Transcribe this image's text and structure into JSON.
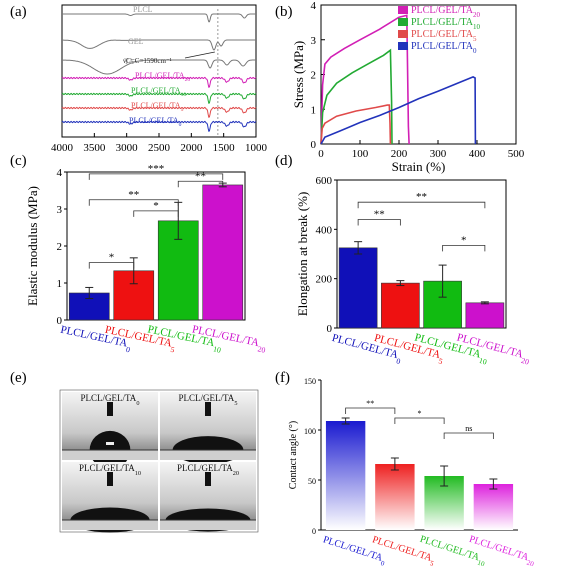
{
  "panels": {
    "a": {
      "label": "(a)",
      "type": "line",
      "curves": [
        {
          "name": "PLCL",
          "color": "#777777",
          "text_color": "#9a9a9a"
        },
        {
          "name": "GEL",
          "color": "#777777",
          "text_color": "#9a9a9a"
        },
        {
          "name": "TA",
          "color": "#777777",
          "text_color": "#9a9a9a"
        },
        {
          "name": "PLCL/GEL/TA20",
          "color": "#d21fb5",
          "text_color": "#d21fb5"
        },
        {
          "name": "PLCL/GEL/TA10",
          "color": "#22aa33",
          "text_color": "#22aa33"
        },
        {
          "name": "PLCL/GEL/TA5",
          "color": "#e04a4a",
          "text_color": "#e04a4a"
        },
        {
          "name": "PLCL/GEL/TA0",
          "color": "#2233bb",
          "text_color": "#2233bb"
        }
      ],
      "annotation": "νC=C=1590cm⁻¹",
      "annotation_x": 1590,
      "xlim": [
        4000,
        1000
      ],
      "xticks": [
        "4000",
        "3500",
        "3000",
        "2500",
        "2000",
        "1500",
        "1000"
      ]
    },
    "b": {
      "label": "(b)",
      "type": "line",
      "xlabel": "Strain (%)",
      "ylabel": "Stress (MPa)",
      "xlim": [
        0,
        500
      ],
      "ylim": [
        0,
        4
      ],
      "xticks": [
        "0",
        "100",
        "200",
        "300",
        "400",
        "500"
      ],
      "yticks": [
        "0",
        "1",
        "2",
        "3",
        "4"
      ],
      "series": [
        {
          "name": "PLCL/GEL/TA20",
          "color": "#d21fb5",
          "points": [
            [
              0,
              0
            ],
            [
              4,
              1.7
            ],
            [
              10,
              2.3
            ],
            [
              25,
              2.5
            ],
            [
              60,
              2.75
            ],
            [
              100,
              3.0
            ],
            [
              150,
              3.3
            ],
            [
              200,
              3.65
            ],
            [
              220,
              3.7
            ],
            [
              224,
              0.5
            ],
            [
              226,
              0
            ]
          ]
        },
        {
          "name": "PLCL/GEL/TA10",
          "color": "#22aa33",
          "points": [
            [
              0,
              0
            ],
            [
              4,
              0.9
            ],
            [
              15,
              1.4
            ],
            [
              40,
              1.75
            ],
            [
              80,
              2.05
            ],
            [
              120,
              2.3
            ],
            [
              160,
              2.55
            ],
            [
              178,
              2.7
            ],
            [
              181,
              1.2
            ],
            [
              182,
              0
            ]
          ]
        },
        {
          "name": "PLCL/GEL/TA5",
          "color": "#e04a4a",
          "points": [
            [
              0,
              0
            ],
            [
              3,
              0.45
            ],
            [
              10,
              0.6
            ],
            [
              40,
              0.8
            ],
            [
              90,
              0.95
            ],
            [
              140,
              1.05
            ],
            [
              170,
              1.12
            ],
            [
              175,
              1.12
            ],
            [
              177,
              0.6
            ],
            [
              178,
              0
            ]
          ]
        },
        {
          "name": "PLCL/GEL/TA0",
          "color": "#2233bb",
          "points": [
            [
              0,
              0
            ],
            [
              10,
              0.2
            ],
            [
              50,
              0.38
            ],
            [
              100,
              0.62
            ],
            [
              150,
              0.82
            ],
            [
              200,
              1.05
            ],
            [
              250,
              1.3
            ],
            [
              300,
              1.52
            ],
            [
              350,
              1.75
            ],
            [
              390,
              1.93
            ],
            [
              395,
              1.9
            ],
            [
              396,
              0
            ]
          ]
        }
      ]
    },
    "c": {
      "label": "(c)",
      "type": "bar",
      "ylabel": "Elastic modulus (MPa)",
      "ylim": [
        0,
        4
      ],
      "yticks": [
        "0",
        "1",
        "2",
        "3",
        "4"
      ],
      "categories": [
        "PLCL/GEL/TA0",
        "PLCL/GEL/TA5",
        "PLCL/GEL/TA10",
        "PLCL/GEL/TA20"
      ],
      "values": [
        0.73,
        1.33,
        2.68,
        3.65
      ],
      "errors": [
        0.15,
        0.35,
        0.5,
        0.05
      ],
      "colors": [
        "#1010b8",
        "#ee1111",
        "#11bb11",
        "#cc11cc"
      ],
      "significance": [
        {
          "from": 0,
          "to": 1,
          "label": "*"
        },
        {
          "from": 1,
          "to": 2,
          "label": "*"
        },
        {
          "from": 0,
          "to": 2,
          "label": "**"
        },
        {
          "from": 2,
          "to": 3,
          "label": "**"
        },
        {
          "from": 0,
          "to": 3,
          "label": "***"
        }
      ]
    },
    "d": {
      "label": "(d)",
      "type": "bar",
      "ylabel": "Elongation at break (%)",
      "ylim": [
        0,
        600
      ],
      "yticks": [
        "0",
        "200",
        "400",
        "600"
      ],
      "categories": [
        "PLCL/GEL/TA0",
        "PLCL/GEL/TA5",
        "PLCL/GEL/TA10",
        "PLCL/GEL/TA20"
      ],
      "values": [
        325,
        182,
        190,
        102
      ],
      "errors": [
        25,
        10,
        65,
        4
      ],
      "colors": [
        "#1010b8",
        "#ee1111",
        "#11bb11",
        "#cc11cc"
      ],
      "significance": [
        {
          "from": 0,
          "to": 1,
          "label": "**"
        },
        {
          "from": 2,
          "to": 3,
          "label": "*"
        },
        {
          "from": 0,
          "to": 3,
          "label": "**"
        }
      ]
    },
    "e": {
      "label": "(e)",
      "images": [
        "PLCL/GEL/TA0",
        "PLCL/GEL/TA5",
        "PLCL/GEL/TA10",
        "PLCL/GEL/TA20"
      ]
    },
    "f": {
      "label": "(f)",
      "type": "bar",
      "ylabel": "Contact angle (°)",
      "ylim": [
        0,
        150
      ],
      "yticks": [
        "0",
        "50",
        "100",
        "150"
      ],
      "categories": [
        "PLCL/GEL/TA0",
        "PLCL/GEL/TA5",
        "PLCL/GEL/TA10",
        "PLCL/GEL/TA20"
      ],
      "values": [
        109,
        66,
        54,
        46
      ],
      "errors": [
        3,
        6,
        10,
        5
      ],
      "colors": [
        "#1a1ad0",
        "#ee2020",
        "#22bb22",
        "#dd22dd"
      ],
      "significance": [
        {
          "from": 0,
          "to": 1,
          "label": "**"
        },
        {
          "from": 1,
          "to": 2,
          "label": "*"
        },
        {
          "from": 2,
          "to": 3,
          "label": "ns"
        }
      ]
    }
  },
  "chart_data": [
    {
      "type": "line",
      "panel": "a",
      "series_names": [
        "PLCL",
        "GEL",
        "TA",
        "PLCL/GEL/TA20",
        "PLCL/GEL/TA10",
        "PLCL/GEL/TA5",
        "PLCL/GEL/TA0"
      ],
      "xlim": [
        4000,
        1000
      ],
      "annotations": [
        "νC=C=1590cm⁻¹"
      ]
    },
    {
      "type": "line",
      "panel": "b",
      "xlabel": "Strain (%)",
      "ylabel": "Stress (MPa)",
      "xlim": [
        0,
        500
      ],
      "ylim": [
        0,
        4
      ],
      "series": [
        {
          "name": "PLCL/GEL/TA20",
          "max_strain": 224,
          "max_stress": 3.7
        },
        {
          "name": "PLCL/GEL/TA10",
          "max_strain": 181,
          "max_stress": 2.7
        },
        {
          "name": "PLCL/GEL/TA5",
          "max_strain": 177,
          "max_stress": 1.12
        },
        {
          "name": "PLCL/GEL/TA0",
          "max_strain": 395,
          "max_stress": 1.93
        }
      ]
    },
    {
      "type": "bar",
      "panel": "c",
      "ylabel": "Elastic modulus (MPa)",
      "categories": [
        "PLCL/GEL/TA0",
        "PLCL/GEL/TA5",
        "PLCL/GEL/TA10",
        "PLCL/GEL/TA20"
      ],
      "values": [
        0.73,
        1.33,
        2.68,
        3.65
      ],
      "ylim": [
        0,
        4
      ]
    },
    {
      "type": "bar",
      "panel": "d",
      "ylabel": "Elongation at break (%)",
      "categories": [
        "PLCL/GEL/TA0",
        "PLCL/GEL/TA5",
        "PLCL/GEL/TA10",
        "PLCL/GEL/TA20"
      ],
      "values": [
        325,
        182,
        190,
        102
      ],
      "ylim": [
        0,
        600
      ]
    },
    {
      "type": "bar",
      "panel": "f",
      "ylabel": "Contact angle (°)",
      "categories": [
        "PLCL/GEL/TA0",
        "PLCL/GEL/TA5",
        "PLCL/GEL/TA10",
        "PLCL/GEL/TA20"
      ],
      "values": [
        109,
        66,
        54,
        46
      ],
      "ylim": [
        0,
        150
      ]
    }
  ]
}
